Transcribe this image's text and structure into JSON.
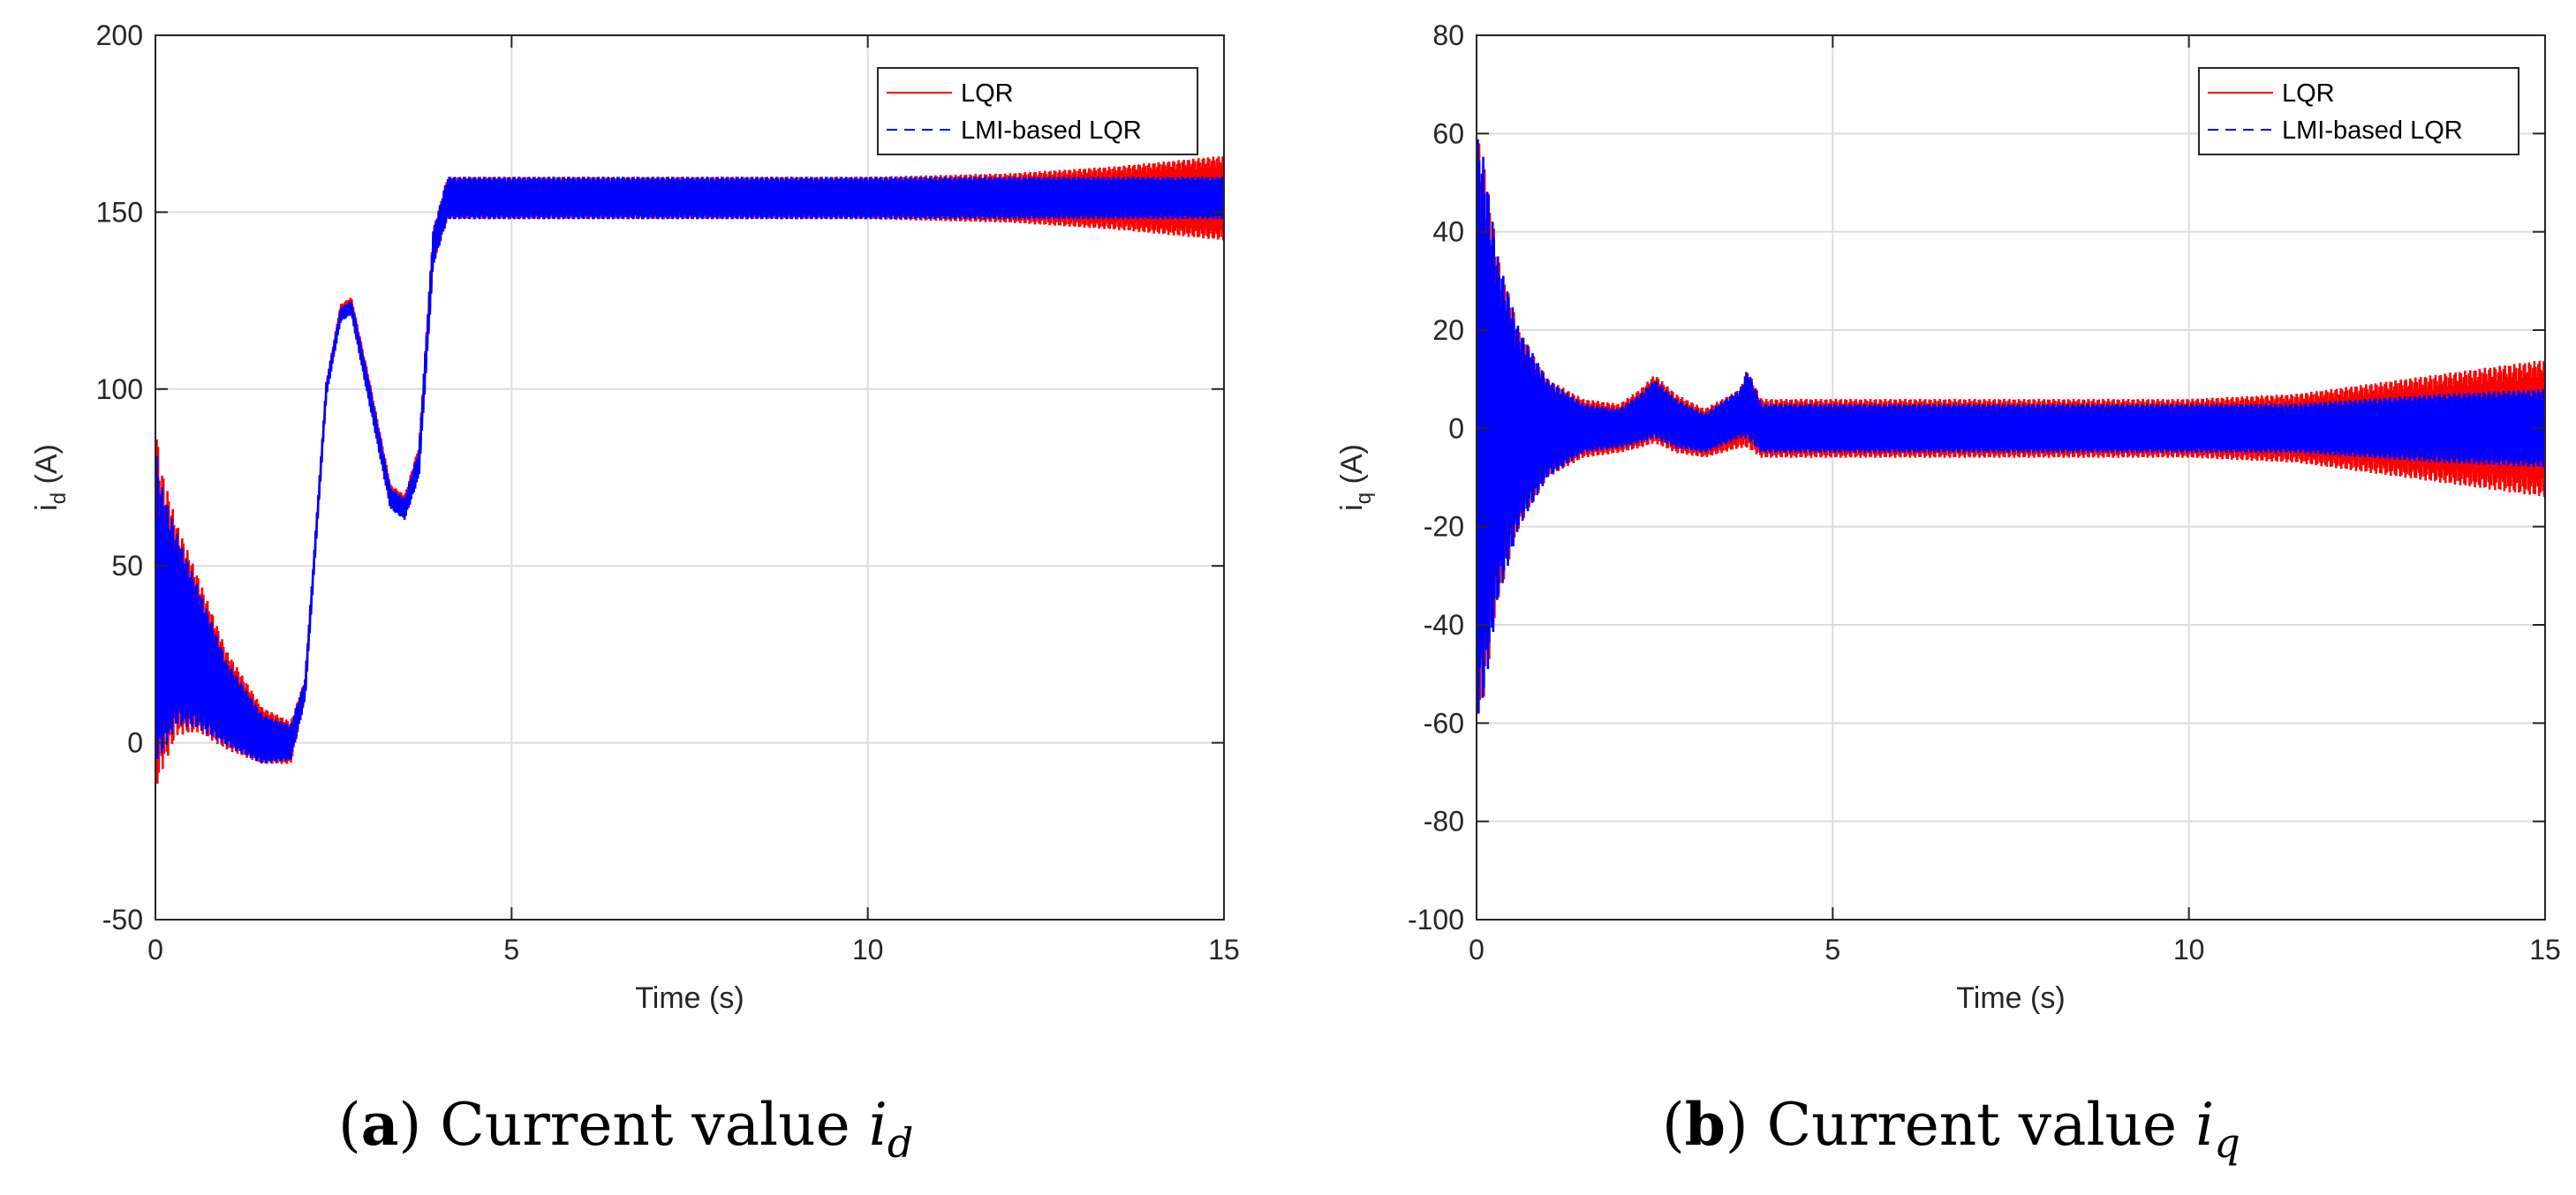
{
  "chart_data": [
    {
      "type": "line",
      "panel": "a",
      "xlabel": "Time (s)",
      "ylabel_main": "i",
      "ylabel_sub": "d",
      "ylabel_unit": " (A)",
      "xlim": [
        0,
        15
      ],
      "ylim": [
        -50,
        200
      ],
      "xticks": [
        0,
        5,
        10,
        15
      ],
      "yticks": [
        -50,
        0,
        50,
        100,
        150,
        200
      ],
      "grid": true,
      "legend_position": "top-right",
      "series": [
        {
          "name": "LQR",
          "style": "solid",
          "color": "#ff0000",
          "x": [
            0,
            0.05,
            0.3,
            0.6,
            1.0,
            1.5,
            1.9,
            2.1,
            2.4,
            2.6,
            2.75,
            3.0,
            3.3,
            3.5,
            3.7,
            3.9,
            4.1,
            6,
            8,
            10,
            12,
            13.5,
            15
          ],
          "center": [
            40,
            35,
            32,
            25,
            12,
            2,
            0,
            15,
            100,
            122,
            124,
            100,
            70,
            67,
            80,
            140,
            154,
            154,
            154,
            154,
            154,
            154,
            154
          ],
          "amp": [
            55,
            45,
            30,
            22,
            14,
            8,
            6,
            3,
            2,
            2,
            2,
            3,
            3,
            3,
            4,
            5,
            6,
            6,
            6,
            6,
            7,
            9,
            12
          ]
        },
        {
          "name": "LMI-based LQR",
          "style": "dashed",
          "color": "#0000ff",
          "x": [
            0,
            0.05,
            0.3,
            0.6,
            1.0,
            1.5,
            1.9,
            2.1,
            2.4,
            2.6,
            2.75,
            3.0,
            3.3,
            3.5,
            3.7,
            3.9,
            4.1,
            6,
            8,
            10,
            12,
            13.5,
            15
          ],
          "center": [
            40,
            35,
            32,
            24,
            11,
            1,
            0,
            15,
            100,
            121,
            123,
            99,
            69,
            66,
            79,
            140,
            154,
            154,
            154,
            154,
            154,
            154,
            154
          ],
          "amp": [
            45,
            40,
            27,
            20,
            12,
            7,
            5,
            3,
            2,
            2,
            2,
            3,
            3,
            3,
            4,
            5,
            6,
            6,
            6,
            6,
            6,
            6,
            6
          ]
        }
      ]
    },
    {
      "type": "line",
      "panel": "b",
      "xlabel": "Time (s)",
      "ylabel_main": "i",
      "ylabel_sub": "q",
      "ylabel_unit": " (A)",
      "xlim": [
        0,
        15
      ],
      "ylim": [
        -100,
        80
      ],
      "xticks": [
        0,
        5,
        10,
        15
      ],
      "yticks": [
        -100,
        -80,
        -60,
        -40,
        -20,
        0,
        20,
        40,
        60,
        80
      ],
      "grid": true,
      "legend_position": "top-right",
      "series": [
        {
          "name": "LQR",
          "style": "solid",
          "color": "#ff0000",
          "x": [
            0,
            0.1,
            0.3,
            0.6,
            1.0,
            1.5,
            2.0,
            2.3,
            2.5,
            2.8,
            3.2,
            3.7,
            3.8,
            4.0,
            6,
            8,
            10,
            11.5,
            12.5,
            13.5,
            15
          ],
          "center": [
            0,
            0,
            0,
            0,
            0,
            0,
            0,
            2,
            4,
            1,
            -1,
            2,
            4,
            0,
            0,
            0,
            0,
            0,
            0,
            0,
            0
          ],
          "amp": [
            60,
            55,
            35,
            20,
            10,
            6,
            5,
            6,
            7,
            6,
            5,
            6,
            8,
            6,
            6,
            6,
            6,
            7,
            9,
            11,
            14
          ]
        },
        {
          "name": "LMI-based LQR",
          "style": "dashed",
          "color": "#0000ff",
          "x": [
            0,
            0.1,
            0.3,
            0.6,
            1.0,
            1.5,
            2.0,
            2.3,
            2.5,
            2.8,
            3.2,
            3.7,
            3.8,
            4.0,
            6,
            8,
            10,
            11.5,
            12.5,
            13.5,
            15
          ],
          "center": [
            0,
            0,
            0,
            0,
            0,
            0,
            0,
            2,
            4,
            1,
            -1,
            3,
            5,
            0,
            0,
            0,
            0,
            0,
            0,
            0,
            0
          ],
          "amp": [
            60,
            55,
            35,
            20,
            10,
            5,
            4,
            5,
            6,
            5,
            4,
            5,
            7,
            5,
            5,
            5,
            5,
            5,
            6,
            7,
            8
          ]
        }
      ]
    }
  ],
  "captions": [
    {
      "label": "a",
      "text": " Current value ",
      "var": "i",
      "sub": "d"
    },
    {
      "label": "b",
      "text": " Current value ",
      "var": "i",
      "sub": "q"
    }
  ]
}
